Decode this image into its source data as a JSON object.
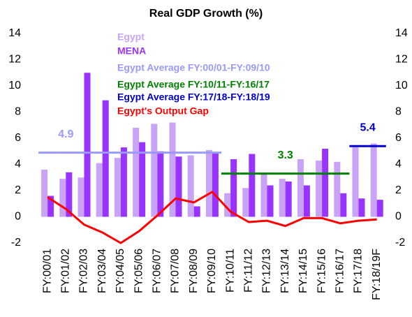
{
  "chart_data": {
    "type": "bar",
    "title": "Real GDP Growth (%)",
    "categories": [
      "FY:00/01",
      "FY:01/02",
      "FY:02/03",
      "FY:03/04",
      "FY:04/05",
      "FY:05/06",
      "FY:06/07",
      "FY:07/08",
      "FY:08/09",
      "FY:09/10",
      "FY:10/11",
      "FY:11/12",
      "FY:12/13",
      "FY:13/14",
      "FY:14/15",
      "FY:15/16",
      "FY:16/17",
      "FY:17/18",
      "FY:18/19F"
    ],
    "series": [
      {
        "name": "Egypt",
        "type": "bar",
        "color": "#c9a3f5",
        "values": [
          3.6,
          2.9,
          3.0,
          4.1,
          4.5,
          6.8,
          7.1,
          7.2,
          4.7,
          5.1,
          1.8,
          2.2,
          3.3,
          2.9,
          4.4,
          4.3,
          4.2,
          5.3,
          5.6
        ]
      },
      {
        "name": "MENA",
        "type": "bar",
        "color": "#9933ff",
        "values": [
          1.6,
          3.4,
          11.0,
          8.9,
          5.3,
          5.7,
          5.0,
          4.6,
          0.8,
          4.9,
          4.4,
          4.8,
          2.4,
          2.7,
          2.4,
          5.2,
          1.8,
          1.4,
          1.3
        ]
      },
      {
        "name": "Egypt Average FY:00/01-FY:09/10",
        "type": "average",
        "color": "#9999ff",
        "values": [
          4.9,
          4.9,
          4.9,
          4.9,
          4.9,
          4.9,
          4.9,
          4.9,
          4.9,
          4.9,
          null,
          null,
          null,
          null,
          null,
          null,
          null,
          null,
          null
        ]
      },
      {
        "name": "Egypt Average FY:10/11-FY:16/17",
        "type": "average",
        "color": "#008000",
        "values": [
          null,
          null,
          null,
          null,
          null,
          null,
          null,
          null,
          null,
          null,
          3.3,
          3.3,
          3.3,
          3.3,
          3.3,
          3.3,
          3.3,
          null,
          null
        ]
      },
      {
        "name": "Egypt Average FY:17/18-FY:18/19",
        "type": "average",
        "color": "#0000cc",
        "values": [
          null,
          null,
          null,
          null,
          null,
          null,
          null,
          null,
          null,
          null,
          null,
          null,
          null,
          null,
          null,
          null,
          null,
          5.4,
          5.4
        ]
      },
      {
        "name": "Egypt's Output Gap",
        "type": "line",
        "color": "#ff0000",
        "values": [
          1.5,
          0.6,
          -0.6,
          -1.2,
          -2.0,
          -1.1,
          0.1,
          1.4,
          1.1,
          1.9,
          0.4,
          -0.4,
          -0.3,
          -0.7,
          -0.1,
          -0.1,
          -0.5,
          -0.3,
          -0.2
        ]
      }
    ],
    "ylim": [
      -2,
      14
    ],
    "yticks": [
      -2,
      0,
      2,
      4,
      6,
      8,
      10,
      12,
      14
    ],
    "y2lim": [
      -2,
      14
    ],
    "y2ticks": [
      -2,
      0,
      2,
      4,
      6,
      8,
      10,
      12,
      14
    ]
  }
}
